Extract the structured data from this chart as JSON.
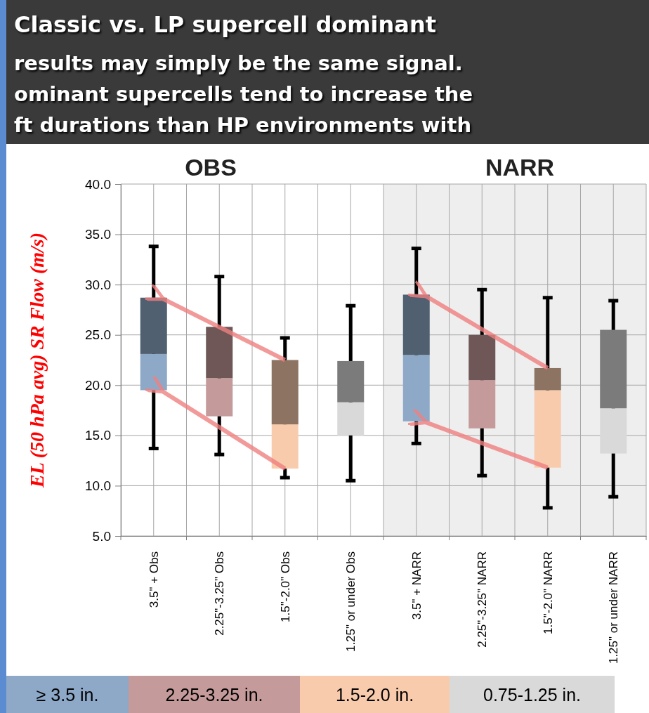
{
  "chart_data": {
    "type": "box",
    "title": "Classic vs. LP supercell dominant",
    "ylabel": "EL (50 hPa avg) SR Flow (m/s)",
    "categories": [
      "3.5\" + Obs",
      "2.25\"-3.25\" Obs",
      "1.5\"-2.0\" Obs",
      "1.25\" or under Obs",
      "3.5\" + NARR",
      "2.25\"-3.25\" NARR",
      "1.5\"-2.0\" NARR",
      "1.25\" or under NARR"
    ],
    "boxes": [
      {
        "low": 13.7,
        "q1": 19.5,
        "median": 23.1,
        "q3": 28.7,
        "high": 33.8
      },
      {
        "low": 13.1,
        "q1": 16.9,
        "median": 20.7,
        "q3": 25.8,
        "high": 30.8
      },
      {
        "low": 10.8,
        "q1": 11.7,
        "median": 16.1,
        "q3": 22.5,
        "high": 24.7
      },
      {
        "low": 10.5,
        "q1": 15.0,
        "median": 18.3,
        "q3": 22.4,
        "high": 27.9
      },
      {
        "low": 14.2,
        "q1": 16.4,
        "median": 23.0,
        "q3": 29.0,
        "high": 33.6
      },
      {
        "low": 11.0,
        "q1": 15.7,
        "median": 20.5,
        "q3": 25.0,
        "high": 29.5
      },
      {
        "low": 7.8,
        "q1": 11.8,
        "median": 19.5,
        "q3": 21.7,
        "high": 28.7
      },
      {
        "low": 8.9,
        "q1": 13.2,
        "median": 17.7,
        "q3": 25.5,
        "high": 28.4
      }
    ],
    "colors": [
      "#8ea9c8",
      "#c49a9a",
      "#f8cbad",
      "#d9d9d9",
      "#8ea9c8",
      "#c49a9a",
      "#f8cbad",
      "#d9d9d9"
    ],
    "ylim": [
      5,
      40
    ],
    "yticks": [
      {
        "value": 5,
        "label": "5.0"
      },
      {
        "value": 10,
        "label": "10.0"
      },
      {
        "value": 15,
        "label": "15.0"
      },
      {
        "value": 20,
        "label": "20.0"
      },
      {
        "value": 25,
        "label": "25.0"
      },
      {
        "value": 30,
        "label": "30.0"
      },
      {
        "value": 35,
        "label": "35.0"
      },
      {
        "value": 40,
        "label": "40.0"
      }
    ],
    "grid": true,
    "bands": [
      {
        "axis": "x",
        "from": "3.5\" + NARR",
        "to": "1.25\" or under NARR",
        "color": "#eeeeee"
      }
    ],
    "annotations": [
      "OBS",
      "NARR",
      "results may simply be the same signal.",
      "ominant supercells tend to increase the",
      "ft durations than HP environments with",
      "≥ 3.5 in.",
      "2.25-3.25 in.",
      "1.5-2.0  in.",
      "0.75-1.25  in."
    ]
  }
}
